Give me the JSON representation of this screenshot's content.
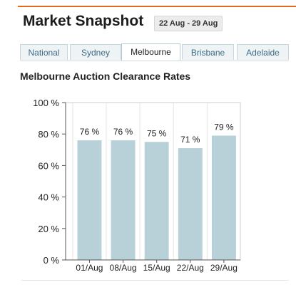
{
  "header": {
    "title": "Market Snapshot",
    "date_range": "22 Aug - 29 Aug"
  },
  "tabs": [
    {
      "label": "National",
      "active": false
    },
    {
      "label": "Sydney",
      "active": false
    },
    {
      "label": "Melbourne",
      "active": true
    },
    {
      "label": "Brisbane",
      "active": false
    },
    {
      "label": "Adelaide",
      "active": false
    }
  ],
  "colors": {
    "accent": "#e06a1f",
    "bar": "#b8d0d8",
    "tab_text": "#3f6d86"
  },
  "chart_data": {
    "type": "bar",
    "title": "Melbourne Auction Clearance Rates",
    "categories": [
      "01/Aug",
      "08/Aug",
      "15/Aug",
      "22/Aug",
      "29/Aug"
    ],
    "values": [
      76,
      76,
      75,
      71,
      79
    ],
    "value_labels": [
      "76 %",
      "76 %",
      "75 %",
      "71 %",
      "79 %"
    ],
    "ylim": [
      0,
      100
    ],
    "yticks": [
      0,
      20,
      40,
      60,
      80,
      100
    ],
    "ytick_labels": [
      "0 %",
      "20 %",
      "40 %",
      "60 %",
      "80 %",
      "100 %"
    ],
    "grid": true,
    "xlabel": "",
    "ylabel": ""
  }
}
